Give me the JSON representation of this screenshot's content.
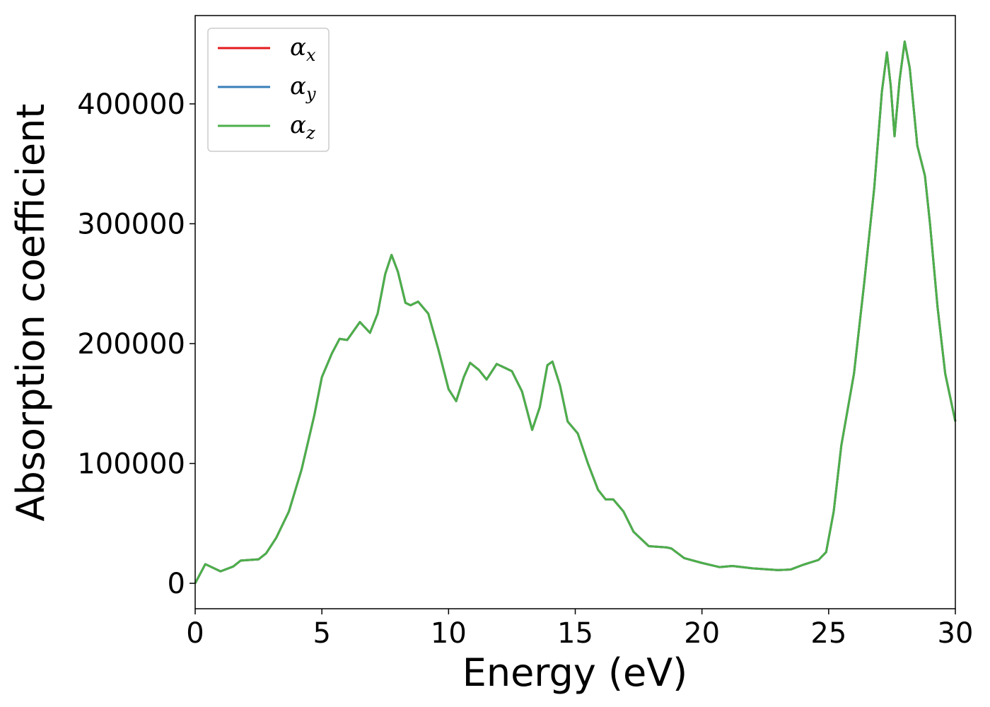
{
  "chart_data": {
    "type": "line",
    "x_label": "Energy (eV)",
    "y_label": "Absorption coefficient",
    "x": [
      0,
      0.4,
      1.0,
      1.5,
      1.8,
      2.5,
      2.8,
      3.2,
      3.7,
      4.2,
      4.7,
      5.0,
      5.4,
      5.7,
      6.0,
      6.5,
      6.9,
      7.2,
      7.5,
      7.75,
      8.0,
      8.3,
      8.5,
      8.8,
      9.2,
      9.6,
      10.0,
      10.3,
      10.6,
      10.85,
      11.2,
      11.5,
      11.9,
      12.2,
      12.5,
      12.9,
      13.3,
      13.6,
      13.9,
      14.1,
      14.4,
      14.7,
      15.1,
      15.5,
      15.9,
      16.2,
      16.5,
      16.9,
      17.3,
      17.9,
      18.6,
      18.8,
      19.3,
      20.0,
      20.7,
      21.2,
      22.0,
      23.0,
      23.5,
      24.0,
      24.6,
      24.9,
      25.2,
      25.5,
      26.0,
      26.4,
      26.8,
      27.1,
      27.3,
      27.45,
      27.6,
      27.8,
      28.0,
      28.2,
      28.5,
      28.8,
      29.0,
      29.3,
      29.6,
      30.0
    ],
    "series": [
      {
        "name": "αx",
        "color": "#e41a1c",
        "values": [
          0,
          16000,
          10000,
          14000,
          19000,
          20000,
          25000,
          38000,
          60000,
          95000,
          140000,
          172000,
          192000,
          204000,
          203000,
          218000,
          209000,
          225000,
          258000,
          274000,
          260000,
          234000,
          232000,
          235000,
          225000,
          195000,
          162000,
          152000,
          172000,
          184000,
          178000,
          170000,
          183000,
          180000,
          177000,
          160000,
          128000,
          147000,
          182000,
          185000,
          165000,
          135000,
          125000,
          100000,
          78000,
          70000,
          70000,
          60000,
          43000,
          31000,
          30000,
          29000,
          21000,
          17000,
          13500,
          14500,
          12500,
          11000,
          11500,
          15500,
          19500,
          26000,
          60000,
          115000,
          175000,
          250000,
          330000,
          410000,
          443000,
          415000,
          373000,
          420000,
          452000,
          430000,
          365000,
          340000,
          300000,
          230000,
          175000,
          135000
        ]
      },
      {
        "name": "αy",
        "color": "#377eb8",
        "values": [
          0,
          16000,
          10000,
          14000,
          19000,
          20000,
          25000,
          38000,
          60000,
          95000,
          140000,
          172000,
          192000,
          204000,
          203000,
          218000,
          209000,
          225000,
          258000,
          274000,
          260000,
          234000,
          232000,
          235000,
          225000,
          195000,
          162000,
          152000,
          172000,
          184000,
          178000,
          170000,
          183000,
          180000,
          177000,
          160000,
          128000,
          147000,
          182000,
          185000,
          165000,
          135000,
          125000,
          100000,
          78000,
          70000,
          70000,
          60000,
          43000,
          31000,
          30000,
          29000,
          21000,
          17000,
          13500,
          14500,
          12500,
          11000,
          11500,
          15500,
          19500,
          26000,
          60000,
          115000,
          175000,
          250000,
          330000,
          410000,
          443000,
          415000,
          373000,
          420000,
          452000,
          430000,
          365000,
          340000,
          300000,
          230000,
          175000,
          135000
        ]
      },
      {
        "name": "αz",
        "color": "#4daf4a",
        "values": [
          0,
          16000,
          10000,
          14000,
          19000,
          20000,
          25000,
          38000,
          60000,
          95000,
          140000,
          172000,
          192000,
          204000,
          203000,
          218000,
          209000,
          225000,
          258000,
          274000,
          260000,
          234000,
          232000,
          235000,
          225000,
          195000,
          162000,
          152000,
          172000,
          184000,
          178000,
          170000,
          183000,
          180000,
          177000,
          160000,
          128000,
          147000,
          182000,
          185000,
          165000,
          135000,
          125000,
          100000,
          78000,
          70000,
          70000,
          60000,
          43000,
          31000,
          30000,
          29000,
          21000,
          17000,
          13500,
          14500,
          12500,
          11000,
          11500,
          15500,
          19500,
          26000,
          60000,
          115000,
          175000,
          250000,
          330000,
          410000,
          443000,
          415000,
          373000,
          420000,
          452000,
          430000,
          365000,
          340000,
          300000,
          230000,
          175000,
          135000
        ]
      }
    ],
    "xlim": [
      0,
      30
    ],
    "xticks": [
      0,
      5,
      10,
      15,
      20,
      25,
      30
    ],
    "ylim": [
      -21200,
      473700
    ],
    "yticks": [
      0,
      100000,
      200000,
      300000,
      400000
    ],
    "legend": "upper left",
    "grid": false
  }
}
